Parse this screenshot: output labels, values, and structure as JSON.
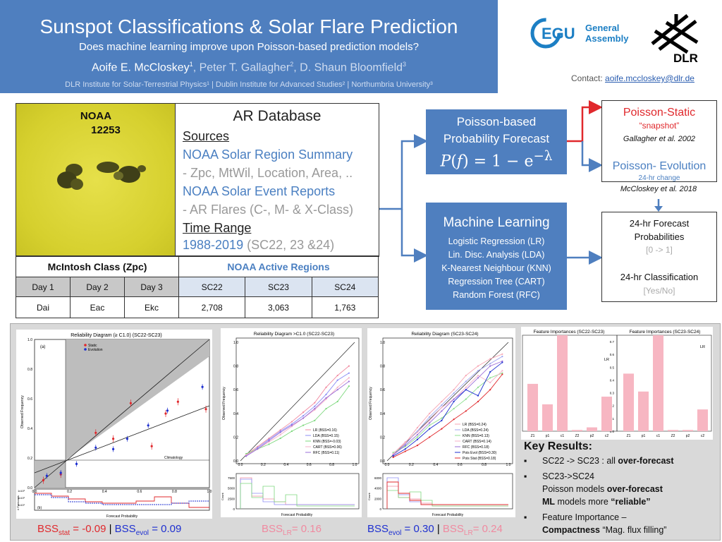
{
  "header": {
    "title": "Sunspot Classifications & Solar Flare Prediction",
    "subtitle": "Does machine learning improve upon Poisson-based prediction models?",
    "author1": "Aoife E. McCloskey",
    "sup1": "1",
    "author2": ", Peter T. Gallagher",
    "sup2": "2",
    "author3": ", D. Shaun Bloomfield",
    "sup3": "3",
    "affiliations": "DLR Institute for Solar-Terrestrial Physics¹ | Dublin Institute for Advanced Studies² | Northumbria University³"
  },
  "contact": {
    "label": "Contact:",
    "email": "aoife.mccloskey@dlr.de"
  },
  "logos": {
    "egu_mark": "EGU",
    "egu_line1": "General",
    "egu_line2": "Assembly",
    "dlr": "DLR"
  },
  "sun": {
    "line1": "NOAA",
    "line2": "12253"
  },
  "ardb": {
    "title": "AR Database",
    "sources": "Sources",
    "s1": "NOAA Solar Region Summary",
    "s1d": "- Zpc, MtWil, Location, Area, ..",
    "s2": "NOAA Solar Event Reports",
    "s2d": "- AR Flares (C-, M- & X-Class)",
    "time_range": "Time Range",
    "range": "1988-2019",
    "range_note": " (SC22, 23 &24)"
  },
  "table": {
    "mcintosh_header": "McIntosh Class (Zpc)",
    "noaa_header": "NOAA Active Regions",
    "days": [
      "Day 1",
      "Day 2",
      "Day 3"
    ],
    "day_values": [
      "Dai",
      "Eac",
      "Ekc"
    ],
    "cycles": [
      "SC22",
      "SC23",
      "SC24"
    ],
    "cycle_values": [
      "2,708",
      "3,063",
      "1,763"
    ]
  },
  "poisson": {
    "l1": "Poisson-based",
    "l2": "Probability Forecast",
    "formula": "P(f) = 1 − e⁻ᵝ"
  },
  "ml": {
    "title": "Machine Learning",
    "items": [
      "Logistic Regression (LR)",
      "Lin. Disc. Analysis (LDA)",
      "K-Nearest Neighbour (KNN)",
      "Regression Tree (CART)",
      "Random Forest (RFC)"
    ]
  },
  "pstatic": {
    "t1": "Poisson-Static",
    "q1": "“snapshot”",
    "c1": "Gallagher et al. 2002",
    "t2": "Poisson- Evolution",
    "q2": "24-hr change",
    "c2": "McCloskey et al. 2018"
  },
  "forecast": {
    "t1": "24-hr Forecast",
    "t2": "Probabilities",
    "r1": "[0 -> 1]",
    "t3": "24-hr Classification",
    "r2": "[Yes/No]"
  },
  "plot1": {
    "title": "Reliability Diagram (≥ C1.0)  (SC22-SC23)",
    "panel_a": "(a)",
    "panel_b": "(b)",
    "legend": [
      "Static",
      "Evolution"
    ],
    "ylabel": "Observed Frequency",
    "xlabel": "Forecast Probability",
    "hist_ylabel": "# Forecasts",
    "climatology": "Climatology",
    "yticks": [
      "0.0",
      "0.2",
      "0.4",
      "0.6",
      "0.8",
      "1.0"
    ],
    "xticks": [
      "0.0",
      "0.2",
      "0.4",
      "0.6",
      "0.8",
      "1.0"
    ],
    "hticks": [
      "1x10³",
      "1x10²",
      "1x10¹"
    ]
  },
  "plot2": {
    "title": "Reliability Diagram >C1.0 (SC22-SC23)",
    "legend": [
      "LR (BSS=0.16)",
      "LDA (BSS=0.15)",
      "KNN (BSS=-0.03)",
      "CART (BSS=0.06)",
      "RFC (BSS=0.11)"
    ],
    "ylabel": "Observed Frequency",
    "xlabel": "Forecast Probability",
    "hist_ylabel": "Count",
    "yticks": [
      "0.0",
      "0.2",
      "0.4",
      "0.6",
      "0.8",
      "1.0"
    ],
    "xticks": [
      "0.0",
      "0.2",
      "0.4",
      "0.6",
      "0.8",
      "1.0"
    ],
    "hticks": [
      "0",
      "2500",
      "5000",
      "7500"
    ]
  },
  "plot3": {
    "title": "Reliability Diagram (SC23-SC24)",
    "legend": [
      "LR (BSS=0.24)",
      "LDA (BSS=0.24)",
      "KNN (BSS=0.13)",
      "CART (BSS=0.14)",
      "RFC (BSS=0.18)",
      "Pois Evol (BSS=0.30)",
      "Pois Stat (BSS=0.18)"
    ],
    "ylabel": "Observed Frequency",
    "xlabel": "Forecast Probability",
    "hist_ylabel": "Count",
    "yticks": [
      "0.0",
      "0.2",
      "0.4",
      "0.6",
      "0.8",
      "1.0"
    ],
    "xticks": [
      "0.0",
      "0.2",
      "0.4",
      "0.6",
      "0.8",
      "1.0"
    ],
    "hticks": [
      "0",
      "2000",
      "4000",
      "6000"
    ]
  },
  "feat": {
    "title1": "Feature Importances (SC22-SC23)",
    "title2": "Feature Importances (SC23-SC24)",
    "tag": "LR",
    "labels": [
      "Z1",
      "p1",
      "c1",
      "Z2",
      "p2",
      "c2"
    ],
    "yticks": [
      "0.0",
      "0.1",
      "0.2",
      "0.3",
      "0.4",
      "0.5",
      "0.6",
      "0.7"
    ]
  },
  "chart_data": [
    {
      "type": "bar",
      "title": "Feature Importances (SC22-SC23)",
      "categories": [
        "Z1",
        "p1",
        "c1",
        "Z2",
        "p2",
        "c2"
      ],
      "values": [
        0.37,
        0.21,
        0.75,
        0.01,
        0.03,
        0.27
      ],
      "ylim": [
        0,
        0.75
      ]
    },
    {
      "type": "bar",
      "title": "Feature Importances (SC23-SC24)",
      "categories": [
        "Z1",
        "p1",
        "c1",
        "Z2",
        "p2",
        "c2"
      ],
      "values": [
        0.45,
        0.31,
        0.75,
        0.01,
        0.01,
        0.17
      ],
      "ylim": [
        0,
        0.75
      ]
    },
    {
      "type": "line",
      "title": "Reliability Diagram >C1.0 (SC22-SC23)",
      "x": [
        0.05,
        0.15,
        0.25,
        0.35,
        0.45,
        0.55,
        0.65,
        0.75,
        0.85,
        0.95
      ],
      "series": [
        {
          "name": "LR (BSS=0.16)",
          "values": [
            0.05,
            0.12,
            0.19,
            0.26,
            0.33,
            0.41,
            0.49,
            0.62,
            0.72,
            0.8
          ]
        },
        {
          "name": "LDA (BSS=0.15)",
          "values": [
            0.04,
            0.11,
            0.18,
            0.25,
            0.31,
            0.38,
            0.46,
            0.56,
            0.68,
            0.74
          ]
        },
        {
          "name": "KNN (BSS=-0.03)",
          "values": [
            0.06,
            0.1,
            0.14,
            0.19,
            0.25,
            0.3,
            0.34,
            0.44,
            0.5,
            0.63
          ]
        },
        {
          "name": "CART (BSS=0.06)",
          "values": [
            0.05,
            0.1,
            0.16,
            0.22,
            0.29,
            0.36,
            0.43,
            0.52,
            0.62,
            0.7
          ]
        },
        {
          "name": "RFC (BSS=0.11)",
          "values": [
            0.04,
            0.1,
            0.17,
            0.24,
            0.3,
            0.36,
            0.44,
            0.53,
            0.6,
            0.67
          ]
        }
      ],
      "xlim": [
        0,
        1
      ],
      "ylim": [
        0,
        1
      ]
    },
    {
      "type": "line",
      "title": "Reliability Diagram (SC23-SC24)",
      "x": [
        0.05,
        0.15,
        0.25,
        0.35,
        0.45,
        0.55,
        0.65,
        0.75,
        0.85,
        0.95
      ],
      "series": [
        {
          "name": "LR (BSS=0.24)",
          "values": [
            0.06,
            0.15,
            0.28,
            0.4,
            0.5,
            0.6,
            0.72,
            0.8,
            0.86,
            0.9
          ]
        },
        {
          "name": "LDA (BSS=0.24)",
          "values": [
            0.05,
            0.14,
            0.25,
            0.37,
            0.47,
            0.57,
            0.67,
            0.76,
            0.82,
            0.88
          ]
        },
        {
          "name": "KNN (BSS=0.13)",
          "values": [
            0.07,
            0.12,
            0.2,
            0.3,
            0.36,
            0.44,
            0.52,
            0.62,
            0.7,
            0.74
          ]
        },
        {
          "name": "CART (BSS=0.14)",
          "values": [
            0.06,
            0.16,
            0.24,
            0.34,
            0.45,
            0.52,
            0.62,
            0.72,
            0.66,
            0.76
          ]
        },
        {
          "name": "RFC (BSS=0.18)",
          "values": [
            0.05,
            0.13,
            0.22,
            0.32,
            0.42,
            0.52,
            0.6,
            0.7,
            0.8,
            0.84
          ]
        },
        {
          "name": "Pois Evol (BSS=0.30)",
          "values": [
            0.04,
            0.1,
            0.18,
            0.27,
            0.34,
            0.5,
            0.6,
            0.55,
            0.75,
            0.83
          ]
        },
        {
          "name": "Pois Stat (BSS=0.18)",
          "values": [
            0.03,
            0.08,
            0.13,
            0.2,
            0.27,
            0.35,
            0.42,
            0.5,
            0.6,
            0.73
          ]
        }
      ],
      "xlim": [
        0,
        1
      ],
      "ylim": [
        0,
        1
      ]
    }
  ],
  "bss": {
    "p1_a": "BSS",
    "p1_a_sub": "stat",
    "p1_a_val": " = -0.09",
    "sep": " | ",
    "p1_b": "BSS",
    "p1_b_sub": "evol",
    "p1_b_val": " = 0.09",
    "p2": "BSS",
    "p2_sub": "LR",
    "p2_val": "= 0.16",
    "p3_a": "BSS",
    "p3_a_sub": "evol",
    "p3_a_val": " = 0.30",
    "p3_b": "BSS",
    "p3_b_sub": "LR",
    "p3_b_val": "= 0.24"
  },
  "key_results": {
    "title": "Key Results:",
    "b1_pre": "SC22 -> SC23 : all ",
    "b1_bold": "over-forecast",
    "b2": "SC23->SC24",
    "b2a_pre": "Poisson models ",
    "b2a_bold": "over-forecast",
    "b2b_bold1": "ML",
    "b2b_mid": " models more ",
    "b2b_bold2": "“reliable”",
    "b3": "Feature Importance –",
    "b3b_bold": "Compactness",
    "b3b_rest": " “Mag. flux filling”",
    "bullet": "▪"
  },
  "colors": {
    "header_bg": "#4f7fbf",
    "red": "#e0282c",
    "blue": "#1d2fd0",
    "pink": "#f08aa0"
  }
}
